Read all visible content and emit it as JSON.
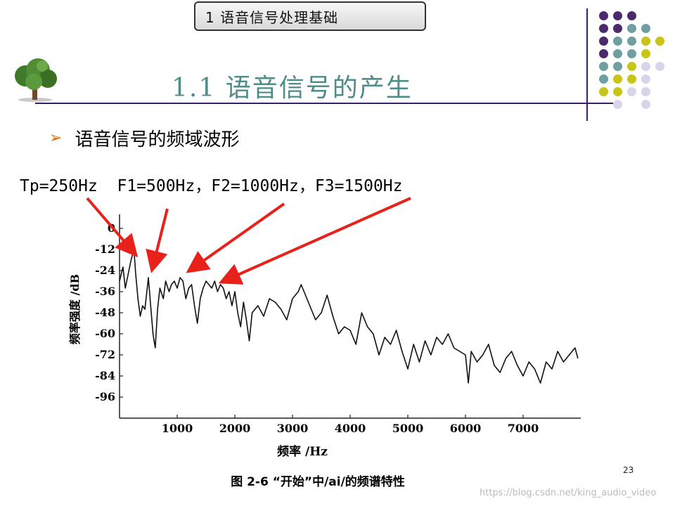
{
  "header": {
    "section": "1 语音信号处理基础"
  },
  "slide": {
    "title": "1.1 语音信号的产生",
    "bullet": "语音信号的频域波形",
    "formants": "Tp=250Hz  F1=500Hz，F2=1000Hz，F3=1500Hz"
  },
  "chart_data": {
    "type": "line",
    "caption": "图 2-6 “开始”中/ai/的频谱特性",
    "xlabel": "频率 /Hz",
    "ylabel": "频率强度 /dB",
    "x_ticks": [
      1000,
      2000,
      3000,
      4000,
      5000,
      6000,
      7000
    ],
    "y_ticks": [
      0,
      -12,
      -24,
      -36,
      -48,
      -60,
      -72,
      -84,
      -96
    ],
    "xlim": [
      0,
      8000
    ],
    "ylim": [
      -108,
      8
    ],
    "grid": false,
    "series": [
      {
        "x": [
          0,
          60,
          100,
          150,
          200,
          250,
          280,
          320,
          360,
          400,
          440,
          480,
          500,
          540,
          580,
          620,
          660,
          700,
          760,
          800,
          860,
          900,
          950,
          1000,
          1050,
          1100,
          1150,
          1200,
          1250,
          1300,
          1350,
          1400,
          1450,
          1500,
          1550,
          1600,
          1650,
          1700,
          1750,
          1800,
          1850,
          1900,
          1950,
          2000,
          2050,
          2100,
          2150,
          2200,
          2250,
          2300,
          2400,
          2500,
          2600,
          2700,
          2800,
          2900,
          3000,
          3100,
          3150,
          3200,
          3300,
          3400,
          3500,
          3600,
          3700,
          3800,
          3900,
          4000,
          4100,
          4200,
          4300,
          4400,
          4500,
          4600,
          4700,
          4800,
          4900,
          5000,
          5100,
          5200,
          5300,
          5400,
          5500,
          5600,
          5700,
          5800,
          5900,
          6000,
          6050,
          6100,
          6200,
          6300,
          6400,
          6500,
          6600,
          6700,
          6800,
          6900,
          7000,
          7100,
          7200,
          7300,
          7400,
          7500,
          7600,
          7700,
          7800,
          7900,
          7950
        ],
        "values": [
          -30,
          -22,
          -34,
          -26,
          -18,
          -12,
          -26,
          -40,
          -50,
          -44,
          -46,
          -34,
          -28,
          -44,
          -60,
          -68,
          -46,
          -34,
          -40,
          -30,
          -36,
          -32,
          -30,
          -34,
          -28,
          -30,
          -40,
          -34,
          -32,
          -44,
          -54,
          -40,
          -34,
          -30,
          -32,
          -34,
          -30,
          -36,
          -32,
          -34,
          -40,
          -36,
          -44,
          -36,
          -48,
          -56,
          -42,
          -52,
          -64,
          -48,
          -44,
          -50,
          -40,
          -42,
          -46,
          -52,
          -40,
          -36,
          -32,
          -36,
          -44,
          -52,
          -48,
          -38,
          -50,
          -60,
          -56,
          -58,
          -66,
          -48,
          -56,
          -60,
          -72,
          -62,
          -66,
          -58,
          -70,
          -80,
          -66,
          -76,
          -64,
          -72,
          -62,
          -66,
          -60,
          -68,
          -70,
          -72,
          -88,
          -70,
          -76,
          -72,
          -66,
          -78,
          -82,
          -74,
          -70,
          -78,
          -84,
          -76,
          -80,
          -88,
          -76,
          -80,
          -70,
          -76,
          -72,
          -68,
          -74
        ]
      }
    ]
  },
  "footer": {
    "page_number": "23",
    "watermark": "https://blog.csdn.net/king_audio_video"
  },
  "colors": {
    "title": "#4e8c8a",
    "rule": "#3b1f5e",
    "arrow": "#e8221b",
    "dot_purple": "#4b2a6b",
    "dot_teal": "#6f9fa0",
    "dot_olive": "#c8c41a",
    "dot_lavender": "#d8d4ea"
  }
}
